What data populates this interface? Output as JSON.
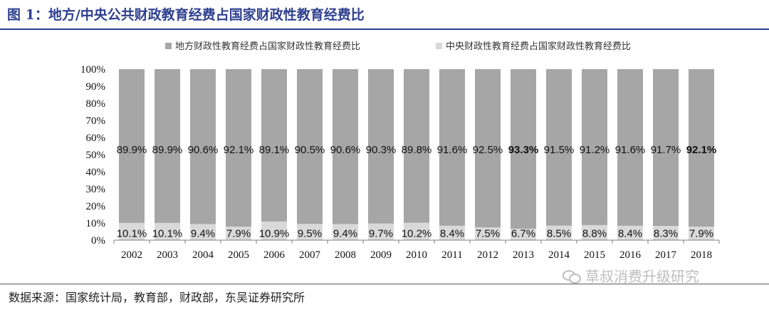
{
  "title": "图 1：地方/中央公共财政教育经费占国家财政性教育经费比",
  "source": "数据来源：国家统计局，教育部，财政部，东吴证券研究所",
  "watermark": "草叔消费升级研究",
  "colors": {
    "local": "#a6a6a6",
    "central": "#d9d9d9",
    "highlight": "#e02020",
    "title": "#2e3f8f"
  },
  "chart_data": {
    "type": "bar",
    "stacked": true,
    "percent_stacked": true,
    "categories": [
      "2002",
      "2003",
      "2004",
      "2005",
      "2006",
      "2007",
      "2008",
      "2009",
      "2010",
      "2011",
      "2012",
      "2013",
      "2014",
      "2015",
      "2016",
      "2017",
      "2018"
    ],
    "series": [
      {
        "name": "地方财政性教育经费占国家财政性教育经费比",
        "values": [
          89.9,
          89.9,
          90.6,
          92.1,
          89.1,
          90.5,
          90.6,
          90.3,
          89.8,
          91.6,
          92.5,
          93.3,
          91.5,
          91.2,
          91.6,
          91.7,
          92.1
        ],
        "labels": [
          "89.9%",
          "89.9%",
          "90.6%",
          "92.1%",
          "89.1%",
          "90.5%",
          "90.6%",
          "90.3%",
          "89.8%",
          "91.6%",
          "92.5%",
          "93.3%",
          "91.5%",
          "91.2%",
          "91.6%",
          "91.7%",
          "92.1%"
        ],
        "highlighted": [
          "2013",
          "2018"
        ]
      },
      {
        "name": "中央财政性教育经费占国家财政性教育经费比",
        "values": [
          10.1,
          10.1,
          9.4,
          7.9,
          10.9,
          9.5,
          9.4,
          9.7,
          10.2,
          8.4,
          7.5,
          6.7,
          8.5,
          8.8,
          8.4,
          8.3,
          7.9
        ],
        "labels": [
          "10.1%",
          "10.1%",
          "9.4%",
          "7.9%",
          "10.9%",
          "9.5%",
          "9.4%",
          "9.7%",
          "10.2%",
          "8.4%",
          "7.5%",
          "6.7%",
          "8.5%",
          "8.8%",
          "8.4%",
          "8.3%",
          "7.9%"
        ]
      }
    ],
    "yticks": [
      "0%",
      "10%",
      "20%",
      "30%",
      "40%",
      "50%",
      "60%",
      "70%",
      "80%",
      "90%",
      "100%"
    ],
    "ylim": [
      0,
      100
    ],
    "grid": false,
    "legend_position": "top"
  }
}
